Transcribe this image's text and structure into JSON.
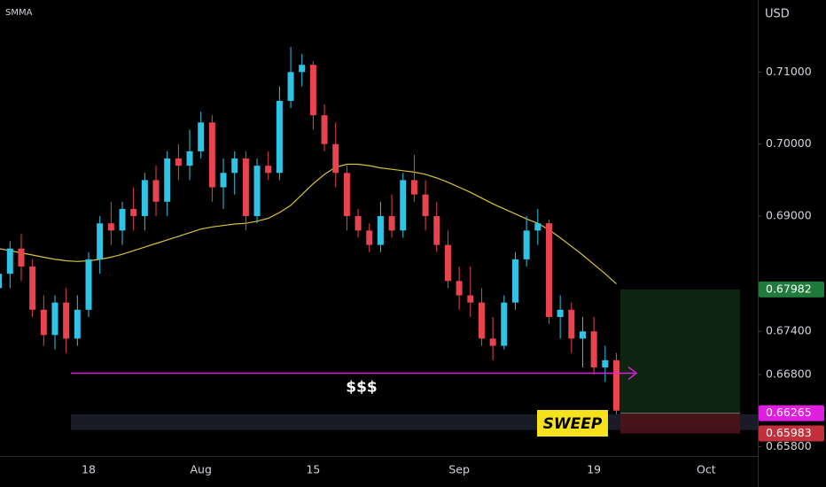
{
  "chart_data": {
    "type": "candlestick",
    "indicator": "SMMA",
    "currency": "USD",
    "categories": [
      null,
      null,
      null,
      null,
      null,
      null,
      null,
      null,
      "18",
      null,
      null,
      null,
      null,
      null,
      null,
      null,
      null,
      null,
      "Aug",
      null,
      null,
      null,
      null,
      null,
      null,
      null,
      null,
      null,
      "15",
      null,
      null,
      null,
      null,
      null,
      null,
      null,
      null,
      null,
      null,
      null,
      null,
      "Sep",
      null,
      null,
      null,
      null,
      null,
      null,
      null,
      null,
      null,
      null,
      null,
      "19",
      null,
      null,
      null,
      null,
      null,
      null,
      null,
      null,
      null,
      "Oct"
    ],
    "open": [
      0.68,
      0.682,
      0.6855,
      0.683,
      0.677,
      0.6735,
      0.678,
      0.673,
      0.677,
      0.684,
      0.689,
      0.688,
      0.691,
      0.69,
      0.695,
      0.692,
      0.698,
      0.697,
      0.699,
      0.703,
      0.694,
      0.696,
      0.698,
      0.69,
      0.697,
      0.696,
      0.706,
      0.71,
      0.711,
      0.704,
      0.7,
      0.696,
      0.69,
      0.688,
      0.686,
      0.69,
      0.688,
      0.695,
      0.693,
      0.69,
      0.686,
      0.681,
      0.679,
      0.678,
      0.673,
      0.672,
      0.678,
      0.684,
      0.688,
      0.689,
      0.676,
      0.677,
      0.673,
      0.674,
      0.669,
      0.67,
      null,
      null,
      null,
      null,
      null,
      null,
      null,
      null
    ],
    "high": [
      0.683,
      0.6865,
      0.6875,
      0.684,
      0.679,
      0.679,
      0.68,
      0.679,
      0.685,
      0.69,
      0.692,
      0.692,
      0.694,
      0.696,
      0.697,
      0.699,
      0.7,
      0.702,
      0.7045,
      0.704,
      0.698,
      0.699,
      0.699,
      0.698,
      0.699,
      0.708,
      0.7135,
      0.7125,
      0.7115,
      0.7055,
      0.703,
      0.697,
      0.691,
      0.689,
      0.692,
      0.693,
      0.696,
      0.6985,
      0.695,
      0.692,
      0.688,
      0.683,
      0.683,
      0.68,
      0.676,
      0.679,
      0.685,
      0.69,
      0.691,
      0.6895,
      0.679,
      0.678,
      0.676,
      0.676,
      0.672,
      0.671,
      null,
      null,
      null,
      null,
      null,
      null,
      null,
      null
    ],
    "low": [
      0.677,
      0.68,
      0.681,
      0.676,
      0.672,
      0.6715,
      0.671,
      0.672,
      0.676,
      0.682,
      0.686,
      0.686,
      0.688,
      0.688,
      0.69,
      0.69,
      0.695,
      0.695,
      0.698,
      0.692,
      0.691,
      0.693,
      0.688,
      0.689,
      0.695,
      0.695,
      0.705,
      0.708,
      0.702,
      0.699,
      0.694,
      0.688,
      0.687,
      0.685,
      0.685,
      0.687,
      0.687,
      0.692,
      0.688,
      0.685,
      0.68,
      0.677,
      0.676,
      0.672,
      0.67,
      0.6715,
      0.677,
      0.683,
      0.686,
      0.675,
      0.673,
      0.671,
      0.669,
      0.668,
      0.667,
      0.6625,
      null,
      null,
      null,
      null,
      null,
      null,
      null,
      null
    ],
    "close": [
      0.682,
      0.6855,
      0.683,
      0.677,
      0.6735,
      0.678,
      0.673,
      0.677,
      0.684,
      0.689,
      0.688,
      0.691,
      0.69,
      0.695,
      0.692,
      0.698,
      0.697,
      0.699,
      0.703,
      0.694,
      0.696,
      0.698,
      0.69,
      0.697,
      0.696,
      0.706,
      0.71,
      0.711,
      0.704,
      0.7,
      0.696,
      0.69,
      0.688,
      0.686,
      0.69,
      0.688,
      0.695,
      0.693,
      0.69,
      0.686,
      0.681,
      0.679,
      0.678,
      0.673,
      0.672,
      0.678,
      0.684,
      0.688,
      0.689,
      0.676,
      0.677,
      0.673,
      0.674,
      0.669,
      0.67,
      0.663,
      null,
      null,
      null,
      null,
      null,
      null,
      null,
      null
    ],
    "up_color": "#2ec4e6",
    "down_color": "#e8434f",
    "smma": {
      "color": "#d8c23a",
      "values": [
        0.6855,
        0.6852,
        0.6849,
        0.6846,
        0.6843,
        0.684,
        0.6838,
        0.6837,
        0.6838,
        0.684,
        0.6843,
        0.6847,
        0.6852,
        0.6857,
        0.6862,
        0.6867,
        0.6872,
        0.6877,
        0.6882,
        0.6885,
        0.6887,
        0.6889,
        0.689,
        0.6893,
        0.6897,
        0.6905,
        0.6915,
        0.693,
        0.6945,
        0.6958,
        0.6968,
        0.6972,
        0.6972,
        0.697,
        0.6967,
        0.6965,
        0.6963,
        0.6961,
        0.6958,
        0.6953,
        0.6947,
        0.694,
        0.6933,
        0.6925,
        0.6917,
        0.691,
        0.6903,
        0.6896,
        0.689,
        0.6881,
        0.687,
        0.6858,
        0.6846,
        0.6833,
        0.682,
        0.6806,
        null,
        null,
        null,
        null,
        null,
        null,
        null,
        null
      ]
    },
    "level": {
      "value": 0.6682,
      "label": "$$$",
      "color": "#e020e0"
    },
    "zone": {
      "low": 0.6603,
      "high": 0.6625,
      "label": "SWEEP"
    },
    "position": {
      "target": {
        "value": 0.67982,
        "color": "#1f7a3b"
      },
      "entry": {
        "value": 0.66265,
        "color": "#e01ee0"
      },
      "stop": {
        "value": 0.65983,
        "color": "#c2303c"
      }
    },
    "ylim": [
      0.6567,
      0.72
    ],
    "yticks": [
      {
        "value": 0.71,
        "label": "0.71000"
      },
      {
        "value": 0.7,
        "label": "0.70000"
      },
      {
        "value": 0.69,
        "label": "0.69000"
      },
      {
        "value": 0.674,
        "label": "0.67400"
      },
      {
        "value": 0.668,
        "label": "0.66800"
      },
      {
        "value": 0.658,
        "label": "0.65800"
      }
    ]
  }
}
